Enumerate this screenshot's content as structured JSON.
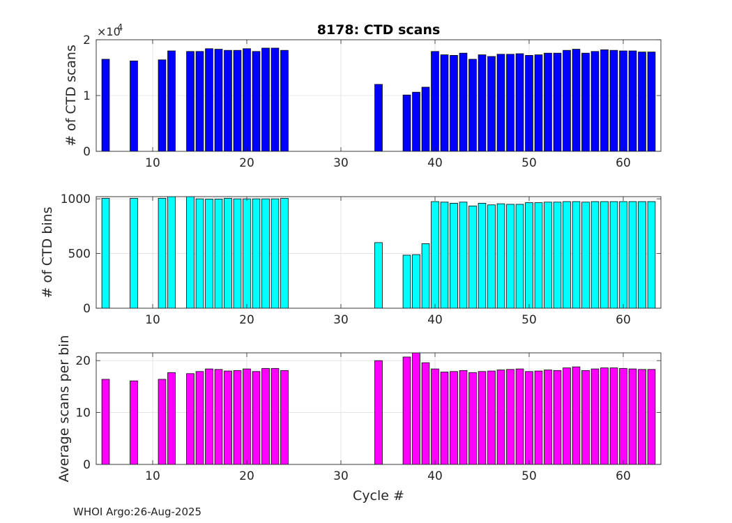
{
  "figure": {
    "title": "8178: CTD scans",
    "footer_source": "WHOI Argo:",
    "footer_date": "26-Aug-2025"
  },
  "chart_data": [
    {
      "type": "bar",
      "title": "8178: CTD scans",
      "xlabel": "",
      "ylabel": "# of CTD scans",
      "exponent_label": "×10",
      "exponent": "4",
      "xlim": [
        4,
        64
      ],
      "ylim": [
        0,
        2
      ],
      "xticks": [
        10,
        20,
        30,
        40,
        50,
        60
      ],
      "yticks": [
        0,
        1,
        2
      ],
      "grid": true,
      "color": "#0000ff",
      "x": [
        5,
        8,
        11,
        12,
        14,
        15,
        16,
        17,
        18,
        19,
        20,
        21,
        22,
        23,
        24,
        34,
        37,
        38,
        39,
        40,
        41,
        42,
        43,
        44,
        45,
        46,
        47,
        48,
        49,
        50,
        51,
        52,
        53,
        54,
        55,
        56,
        57,
        58,
        59,
        60,
        61,
        62,
        63
      ],
      "values": [
        1.65,
        1.62,
        1.64,
        1.8,
        1.79,
        1.79,
        1.84,
        1.83,
        1.81,
        1.81,
        1.84,
        1.79,
        1.85,
        1.85,
        1.81,
        1.2,
        1.01,
        1.06,
        1.15,
        1.79,
        1.73,
        1.72,
        1.76,
        1.65,
        1.73,
        1.7,
        1.74,
        1.74,
        1.75,
        1.72,
        1.73,
        1.76,
        1.76,
        1.81,
        1.83,
        1.76,
        1.79,
        1.82,
        1.81,
        1.8,
        1.8,
        1.78,
        1.78
      ]
    },
    {
      "type": "bar",
      "title": "",
      "xlabel": "",
      "ylabel": "# of CTD bins",
      "xlim": [
        4,
        64
      ],
      "ylim": [
        0,
        1020
      ],
      "xticks": [
        10,
        20,
        30,
        40,
        50,
        60
      ],
      "yticks": [
        0,
        500,
        1000
      ],
      "grid": true,
      "color": "#00ffff",
      "x": [
        5,
        8,
        11,
        12,
        14,
        15,
        16,
        17,
        18,
        19,
        20,
        21,
        22,
        23,
        24,
        34,
        37,
        38,
        39,
        40,
        41,
        42,
        43,
        44,
        45,
        46,
        47,
        48,
        49,
        50,
        51,
        52,
        53,
        54,
        55,
        56,
        57,
        58,
        59,
        60,
        61,
        62,
        63
      ],
      "values": [
        1005,
        1005,
        1005,
        1020,
        1020,
        1000,
        998,
        998,
        1005,
        1000,
        1000,
        1000,
        1000,
        1000,
        1005,
        600,
        485,
        490,
        590,
        975,
        970,
        960,
        970,
        935,
        960,
        945,
        955,
        950,
        950,
        965,
        965,
        970,
        970,
        975,
        975,
        970,
        975,
        975,
        975,
        975,
        975,
        975,
        975
      ]
    },
    {
      "type": "bar",
      "title": "",
      "xlabel": "Cycle #",
      "ylabel": "Average scans per bin",
      "xlim": [
        4,
        64
      ],
      "ylim": [
        0,
        21.5
      ],
      "xticks": [
        10,
        20,
        30,
        40,
        50,
        60
      ],
      "yticks": [
        0,
        10,
        20
      ],
      "grid": true,
      "color": "#ff00ff",
      "x": [
        5,
        8,
        11,
        12,
        14,
        15,
        16,
        17,
        18,
        19,
        20,
        21,
        22,
        23,
        24,
        34,
        37,
        38,
        39,
        40,
        41,
        42,
        43,
        44,
        45,
        46,
        47,
        48,
        49,
        50,
        51,
        52,
        53,
        54,
        55,
        56,
        57,
        58,
        59,
        60,
        61,
        62,
        63
      ],
      "values": [
        16.4,
        16.1,
        16.4,
        17.7,
        17.5,
        17.9,
        18.4,
        18.3,
        18.0,
        18.1,
        18.4,
        17.9,
        18.5,
        18.5,
        18.1,
        20.0,
        20.7,
        21.5,
        19.6,
        18.4,
        17.8,
        17.9,
        18.1,
        17.7,
        17.9,
        18.0,
        18.2,
        18.3,
        18.4,
        17.9,
        18.0,
        18.2,
        18.1,
        18.6,
        18.8,
        18.1,
        18.4,
        18.6,
        18.6,
        18.5,
        18.4,
        18.3,
        18.3
      ]
    }
  ]
}
